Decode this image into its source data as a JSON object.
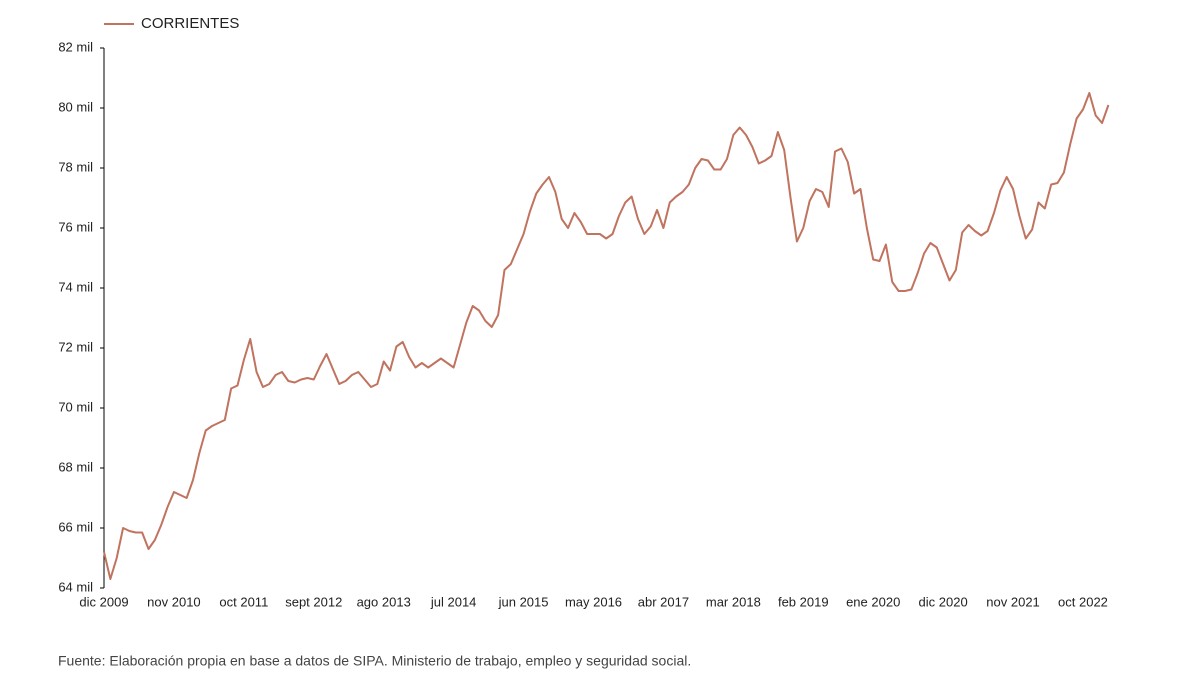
{
  "chart_data": {
    "type": "line",
    "categories": [
      "dic 2009",
      null,
      null,
      null,
      null,
      null,
      null,
      null,
      null,
      null,
      null,
      "nov 2010",
      null,
      null,
      null,
      null,
      null,
      null,
      null,
      null,
      null,
      null,
      "oct 2011",
      null,
      null,
      null,
      null,
      null,
      null,
      null,
      null,
      null,
      null,
      "sept 2012",
      null,
      null,
      null,
      null,
      null,
      null,
      null,
      null,
      null,
      null,
      "ago 2013",
      null,
      null,
      null,
      null,
      null,
      null,
      null,
      null,
      null,
      null,
      "jul 2014",
      null,
      null,
      null,
      null,
      null,
      null,
      null,
      null,
      null,
      null,
      "jun 2015",
      null,
      null,
      null,
      null,
      null,
      null,
      null,
      null,
      null,
      null,
      "may 2016",
      null,
      null,
      null,
      null,
      null,
      null,
      null,
      null,
      null,
      null,
      "abr 2017",
      null,
      null,
      null,
      null,
      null,
      null,
      null,
      null,
      null,
      null,
      "mar 2018",
      null,
      null,
      null,
      null,
      null,
      null,
      null,
      null,
      null,
      null,
      "feb 2019",
      null,
      null,
      null,
      null,
      null,
      null,
      null,
      null,
      null,
      null,
      "ene 2020",
      null,
      null,
      null,
      null,
      null,
      null,
      null,
      null,
      null,
      null,
      "dic 2020",
      null,
      null,
      null,
      null,
      null,
      null,
      null,
      null,
      null,
      null,
      "nov 2021",
      null,
      null,
      null,
      null,
      null,
      null,
      null,
      null,
      null,
      null,
      "oct 2022",
      null,
      null,
      null,
      null
    ],
    "series": [
      {
        "name": "CORRIENTES",
        "color": "#c0735e",
        "values": [
          65200,
          64300,
          65000,
          66000,
          65900,
          65850,
          65850,
          65300,
          65600,
          66100,
          66700,
          67200,
          67100,
          67000,
          67600,
          68500,
          69250,
          69400,
          69500,
          69600,
          70650,
          70750,
          71600,
          72300,
          71200,
          70700,
          70800,
          71100,
          71200,
          70900,
          70850,
          70950,
          71000,
          70950,
          71400,
          71800,
          71300,
          70800,
          70900,
          71100,
          71200,
          70950,
          70700,
          70800,
          71550,
          71250,
          72050,
          72200,
          71700,
          71350,
          71500,
          71350,
          71500,
          71650,
          71500,
          71350,
          72100,
          72850,
          73400,
          73250,
          72900,
          72700,
          73100,
          74600,
          74800,
          75300,
          75800,
          76550,
          77150,
          77450,
          77700,
          77200,
          76300,
          76000,
          76500,
          76200,
          75800,
          75800,
          75800,
          75650,
          75800,
          76400,
          76850,
          77050,
          76300,
          75800,
          76050,
          76600,
          76000,
          76850,
          77050,
          77200,
          77450,
          78000,
          78300,
          78250,
          77950,
          77950,
          78300,
          79100,
          79350,
          79100,
          78700,
          78150,
          78250,
          78400,
          79200,
          78600,
          77000,
          75550,
          76000,
          76900,
          77300,
          77200,
          76700,
          78550,
          78650,
          78200,
          77150,
          77300,
          76000,
          74950,
          74900,
          75450,
          74200,
          73900,
          73900,
          73950,
          74500,
          75150,
          75500,
          75350,
          74800,
          74250,
          74600,
          75850,
          76100,
          75900,
          75750,
          75900,
          76500,
          77250,
          77700,
          77300,
          76400,
          75650,
          75950,
          76850,
          76650,
          77450,
          77500,
          77850,
          78800,
          79650,
          79950,
          80500,
          79750,
          79500,
          80100
        ]
      }
    ],
    "ylim": [
      64000,
      82000
    ],
    "yticks": [
      {
        "value": 64000,
        "label": "64 mil"
      },
      {
        "value": 66000,
        "label": "66 mil"
      },
      {
        "value": 68000,
        "label": "68 mil"
      },
      {
        "value": 70000,
        "label": "70 mil"
      },
      {
        "value": 72000,
        "label": "72 mil"
      },
      {
        "value": 74000,
        "label": "74 mil"
      },
      {
        "value": 76000,
        "label": "76 mil"
      },
      {
        "value": 78000,
        "label": "78 mil"
      },
      {
        "value": 80000,
        "label": "80 mil"
      },
      {
        "value": 82000,
        "label": "82 mil"
      }
    ],
    "grid": false,
    "source": "Fuente: Elaboración propia en base a datos de SIPA. Ministerio de trabajo, empleo y seguridad social."
  }
}
